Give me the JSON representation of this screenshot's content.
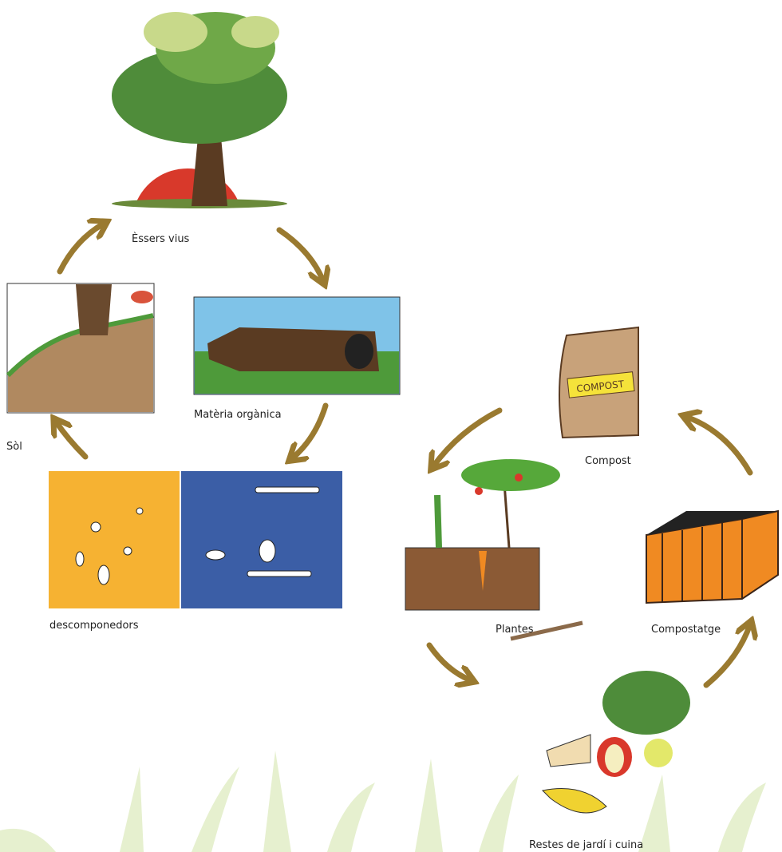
{
  "nodes": [
    {
      "label": "Èssers vius"
    },
    {
      "label": "Matèria orgànica"
    },
    {
      "label": "Sòl"
    },
    {
      "label": "descomponedors"
    },
    {
      "label": "Compost"
    },
    {
      "label": "Plantes"
    },
    {
      "label": "Compostatge"
    },
    {
      "label": "Restes de jardí i cuina"
    }
  ]
}
